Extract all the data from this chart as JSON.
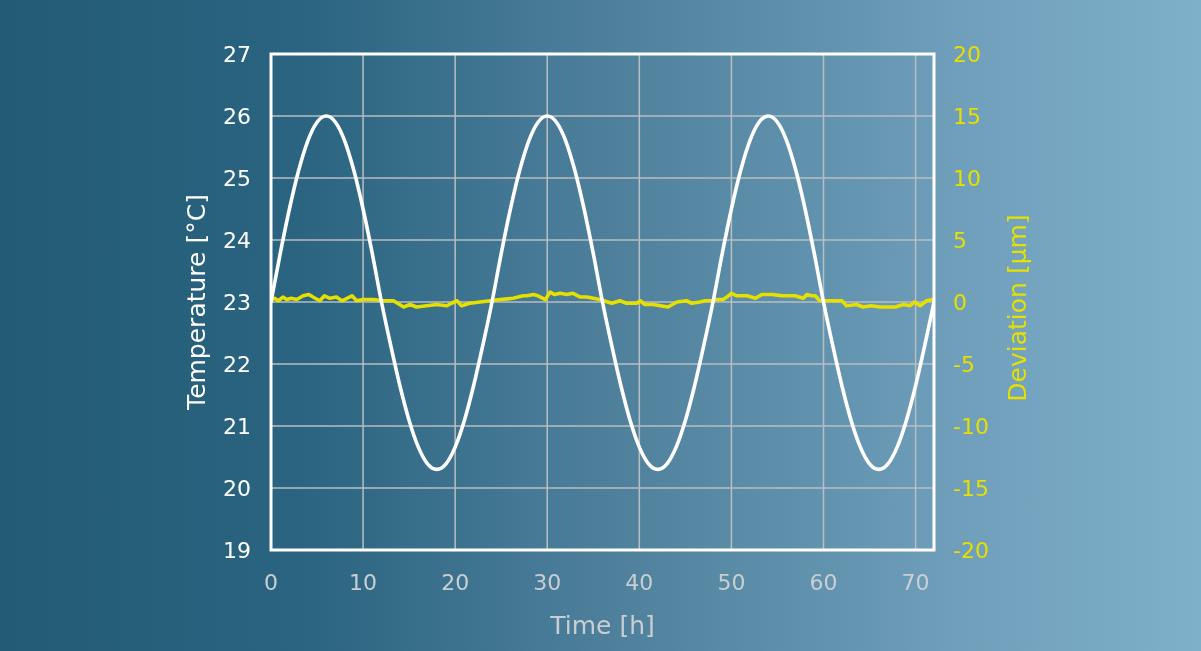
{
  "chart_data": {
    "type": "line",
    "xlabel": "Time [h]",
    "ylabel": "Temperature [°C]",
    "y2label": "Deviation [µm]",
    "xlim": [
      0,
      72
    ],
    "xticks": [
      0,
      10,
      20,
      30,
      40,
      50,
      60,
      70
    ],
    "ylim": [
      19,
      27
    ],
    "yticks": [
      19,
      20,
      21,
      22,
      23,
      24,
      25,
      26,
      27
    ],
    "y2lim": [
      -20,
      20
    ],
    "y2ticks": [
      -20,
      -15,
      -10,
      -5,
      0,
      5,
      10,
      15,
      20
    ],
    "grid": true,
    "series": [
      {
        "color": "#ffffff",
        "x": [
          0,
          1,
          2,
          3,
          4,
          5,
          6,
          7,
          8,
          9,
          10,
          11,
          12,
          13,
          14,
          15,
          16,
          17,
          18,
          19,
          20,
          21,
          22,
          23,
          24,
          25,
          26,
          27,
          28,
          29,
          30,
          31,
          32,
          33,
          34,
          35,
          36,
          37,
          38,
          39,
          40,
          41,
          42,
          43,
          44,
          45,
          46,
          47,
          48,
          49,
          50,
          51,
          52,
          53,
          54,
          55,
          56,
          57,
          58,
          59,
          60,
          61,
          62,
          63,
          64,
          65,
          66,
          67,
          68,
          69,
          70,
          71,
          72
        ],
        "values": [
          23.0,
          23.78,
          24.5,
          25.12,
          25.6,
          25.9,
          26.0,
          25.9,
          25.6,
          25.12,
          24.5,
          23.78,
          23.0,
          22.3,
          21.65,
          21.09,
          20.66,
          20.39,
          20.3,
          20.39,
          20.66,
          21.09,
          21.65,
          22.3,
          23.0,
          23.78,
          24.5,
          25.12,
          25.6,
          25.9,
          26.0,
          25.9,
          25.6,
          25.12,
          24.5,
          23.78,
          23.0,
          22.3,
          21.65,
          21.09,
          20.66,
          20.39,
          20.3,
          20.39,
          20.66,
          21.09,
          21.65,
          22.3,
          23.0,
          23.78,
          24.5,
          25.12,
          25.6,
          25.9,
          26.0,
          25.9,
          25.6,
          25.12,
          24.5,
          23.78,
          23.0,
          22.3,
          21.65,
          21.09,
          20.66,
          20.39,
          20.3,
          20.39,
          20.66,
          21.09,
          21.65,
          22.3,
          23.0
        ]
      },
      {
        "color": "#e6df00",
        "axis": "y2",
        "x": [
          0,
          0.4,
          0.8,
          1.3,
          1.7,
          2.2,
          2.8,
          3.5,
          4.1,
          4.8,
          5.3,
          5.8,
          6.4,
          7.1,
          7.7,
          8.8,
          9.3,
          10.0,
          11.1,
          12.2,
          13.3,
          14.4,
          15.1,
          15.8,
          16.9,
          18.0,
          19.1,
          19.6,
          20.2,
          20.7,
          21.6,
          22.7,
          23.8,
          24.9,
          26.3,
          27.4,
          27.8,
          28.5,
          29.0,
          29.8,
          30.3,
          30.8,
          31.4,
          32.1,
          32.8,
          33.6,
          34.3,
          35.0,
          35.7,
          37.0,
          37.9,
          38.6,
          39.7,
          40.1,
          40.6,
          41.5,
          43.1,
          44.1,
          45.1,
          45.7,
          46.6,
          47.1,
          47.9,
          48.4,
          49.1,
          49.5,
          50.0,
          50.6,
          51.7,
          52.6,
          53.3,
          54.4,
          55.5,
          56.4,
          56.9,
          57.8,
          58.2,
          58.7,
          59.1,
          59.6,
          60.7,
          62.0,
          62.5,
          63.6,
          64.3,
          65.2,
          66.1,
          66.9,
          67.8,
          68.7,
          69.4,
          69.9,
          70.5,
          71.2,
          71.9
        ],
        "values": [
          0.1,
          0.3,
          0.1,
          0.4,
          0.2,
          0.3,
          0.2,
          0.5,
          0.6,
          0.3,
          0.1,
          0.5,
          0.3,
          0.4,
          0.1,
          0.5,
          0.1,
          0.2,
          0.2,
          0.1,
          0.1,
          -0.4,
          -0.2,
          -0.4,
          -0.3,
          -0.2,
          -0.3,
          -0.1,
          0.1,
          -0.3,
          -0.1,
          0.0,
          0.1,
          0.2,
          0.3,
          0.5,
          0.5,
          0.6,
          0.5,
          0.2,
          0.8,
          0.6,
          0.7,
          0.6,
          0.7,
          0.4,
          0.4,
          0.3,
          0.2,
          -0.1,
          0.1,
          -0.1,
          -0.1,
          0.1,
          -0.2,
          -0.2,
          -0.4,
          0.0,
          0.1,
          -0.1,
          0.0,
          0.1,
          0.1,
          0.2,
          0.2,
          0.4,
          0.7,
          0.5,
          0.5,
          0.3,
          0.6,
          0.6,
          0.5,
          0.5,
          0.5,
          0.3,
          0.6,
          0.5,
          0.5,
          0.1,
          0.1,
          0.1,
          -0.3,
          -0.2,
          -0.4,
          -0.3,
          -0.4,
          -0.4,
          -0.4,
          -0.2,
          -0.3,
          0.0,
          -0.3,
          0.1,
          0.2
        ]
      }
    ]
  }
}
